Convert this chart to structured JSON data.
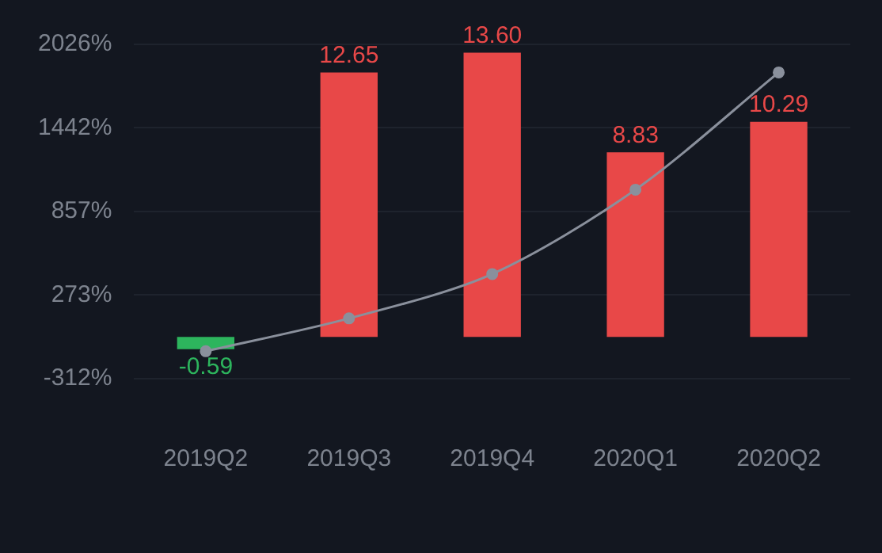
{
  "chart_data": {
    "type": "bar",
    "categories": [
      "2019Q2",
      "2019Q3",
      "2019Q4",
      "2020Q1",
      "2020Q2"
    ],
    "series": [
      {
        "axis": "y2",
        "values": [
          -0.59,
          12.65,
          13.6,
          8.83,
          10.29
        ],
        "colors": [
          "#2db55d",
          "#e84848",
          "#e84848",
          "#e84848",
          "#e84848"
        ],
        "value_labels": [
          "-0.59",
          "12.65",
          "13.60",
          "8.83",
          "10.29"
        ]
      },
      {
        "type": "line",
        "axis": "y",
        "color": "#8a909c",
        "values": [
          -120,
          110,
          420,
          1010,
          1830
        ],
        "marker": "circle"
      }
    ],
    "ylim": [
      -312,
      2026
    ],
    "yticks": [
      {
        "value": -312,
        "label": "-312%"
      },
      {
        "value": 273,
        "label": "273%"
      },
      {
        "value": 857,
        "label": "857%"
      },
      {
        "value": 1442,
        "label": "1442%"
      },
      {
        "value": 2026,
        "label": "2026%"
      }
    ],
    "grid": "y",
    "legend": false
  }
}
